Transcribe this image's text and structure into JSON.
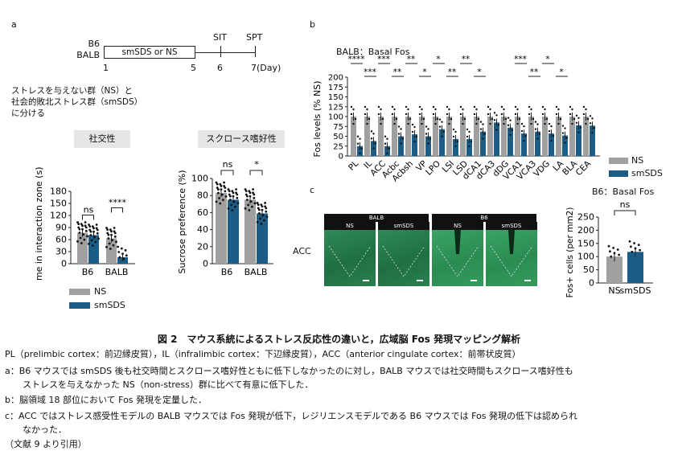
{
  "panel_a": {
    "letter": "a",
    "strains": [
      "B6",
      "BALB"
    ],
    "timeline_box_label": "smSDS or NS",
    "timeline_points": [
      "SIT",
      "SPT"
    ],
    "timeline_days": [
      "1",
      "5",
      "6",
      "7(Day)"
    ],
    "description_lines": [
      "ストレスを与えない群（NS）と",
      "社会的敗北ストレス群（smSDS）",
      "に分ける"
    ],
    "left_box_title": "社交性",
    "right_box_title": "スクロース嗜好性",
    "legend": [
      "NS",
      "smSDS"
    ],
    "colors": {
      "NS": "#a0a0a0",
      "smSDS": "#1b5d86"
    }
  },
  "panel_b": {
    "letter": "b",
    "title": "BALB：Basal Fos",
    "legend": [
      "NS",
      "smSDS"
    ]
  },
  "panel_c": {
    "letter": "c",
    "region_label": "ACC",
    "strain_headers": [
      "BALB",
      "B6"
    ],
    "group_labels": [
      "NS",
      "smSDS",
      "NS",
      "smSDS"
    ],
    "title": "B6：Basal Fos"
  },
  "chart_data": [
    {
      "type": "bar",
      "title": "社交性",
      "ylabel": "Time in interaction zone (s)",
      "ylim": [
        0,
        180
      ],
      "yticks": [
        "0",
        "30",
        "60",
        "90",
        "120",
        "150",
        "180"
      ],
      "categories": [
        "B6",
        "BALB"
      ],
      "series": [
        {
          "name": "NS",
          "values": [
            77,
            63
          ]
        },
        {
          "name": "smSDS",
          "values": [
            71,
            16
          ]
        }
      ],
      "significance": [
        "ns",
        "****"
      ]
    },
    {
      "type": "bar",
      "title": "スクロース嗜好性",
      "ylabel": "Sucrose preference (%)",
      "ylim": [
        0,
        100
      ],
      "yticks": [
        "0",
        "20",
        "40",
        "60",
        "80",
        "100"
      ],
      "categories": [
        "B6",
        "BALB"
      ],
      "series": [
        {
          "name": "NS",
          "values": [
            83,
            75
          ]
        },
        {
          "name": "smSDS",
          "values": [
            75,
            59
          ]
        }
      ],
      "significance": [
        "ns",
        "*"
      ]
    },
    {
      "type": "bar",
      "title": "BALB：Basal Fos",
      "ylabel": "Fos levels (% NS)",
      "ylim": [
        0,
        200
      ],
      "yticks": [
        "0",
        "25",
        "50",
        "75",
        "100",
        "125",
        "150",
        "175",
        "200"
      ],
      "categories": [
        "PL",
        "IL",
        "ACC",
        "Acbc",
        "Acbsh",
        "VP",
        "LPO",
        "LSI",
        "LSD",
        "dCA1",
        "dCA3",
        "dDG",
        "VCA1",
        "VCA3",
        "VDG",
        "LA",
        "BLA",
        "CEA"
      ],
      "series": [
        {
          "name": "NS",
          "values": [
            100,
            100,
            100,
            100,
            100,
            100,
            100,
            100,
            100,
            100,
            100,
            100,
            100,
            100,
            100,
            100,
            100,
            100
          ]
        },
        {
          "name": "smSDS",
          "values": [
            25,
            38,
            25,
            50,
            55,
            50,
            68,
            43,
            43,
            62,
            85,
            72,
            57,
            62,
            57,
            52,
            78,
            77
          ]
        }
      ],
      "significance": [
        "****",
        "***",
        "***",
        "**",
        "**",
        "*",
        "*",
        "**",
        "**",
        "*",
        "",
        "",
        "***",
        "**",
        "*",
        "*",
        "",
        ""
      ]
    },
    {
      "type": "bar",
      "title": "B6：Basal Fos",
      "ylabel": "Fos+ cells (per mm2)",
      "ylim": [
        0,
        250
      ],
      "yticks": [
        "0",
        "50",
        "100",
        "150",
        "200",
        "250"
      ],
      "categories": [
        "NS",
        "smSDS"
      ],
      "values": [
        100,
        118
      ],
      "significance": "ns"
    }
  ],
  "caption": {
    "title": "図 2　マウス系統によるストレス反応性の違いと，広域脳 Fos 発現マッピング解析",
    "lines": [
      "PL（prelimbic cortex：前辺縁皮質），IL（infralimbic cortex：下辺縁皮質），ACC（anterior cingulate cortex：前帯状皮質）",
      "a：B6 マウスでは smSDS 後も社交時間とスクロース嗜好性ともに低下しなかったのに対し，BALB マウスでは社交時間もスクロース嗜好性も",
      "　　ストレスを与えなかった NS（non-stress）群に比べて有意に低下した．",
      "b：脳領域 18 部位において Fos 発現を定量した．",
      "c：ACC ではストレス感受性モデルの BALB マウスでは Fos 発現が低下，レジリエンスモデルである B6 マウスでは Fos 発現の低下は認められ",
      "　　なかった．",
      "（文献 9 より引用）"
    ]
  }
}
